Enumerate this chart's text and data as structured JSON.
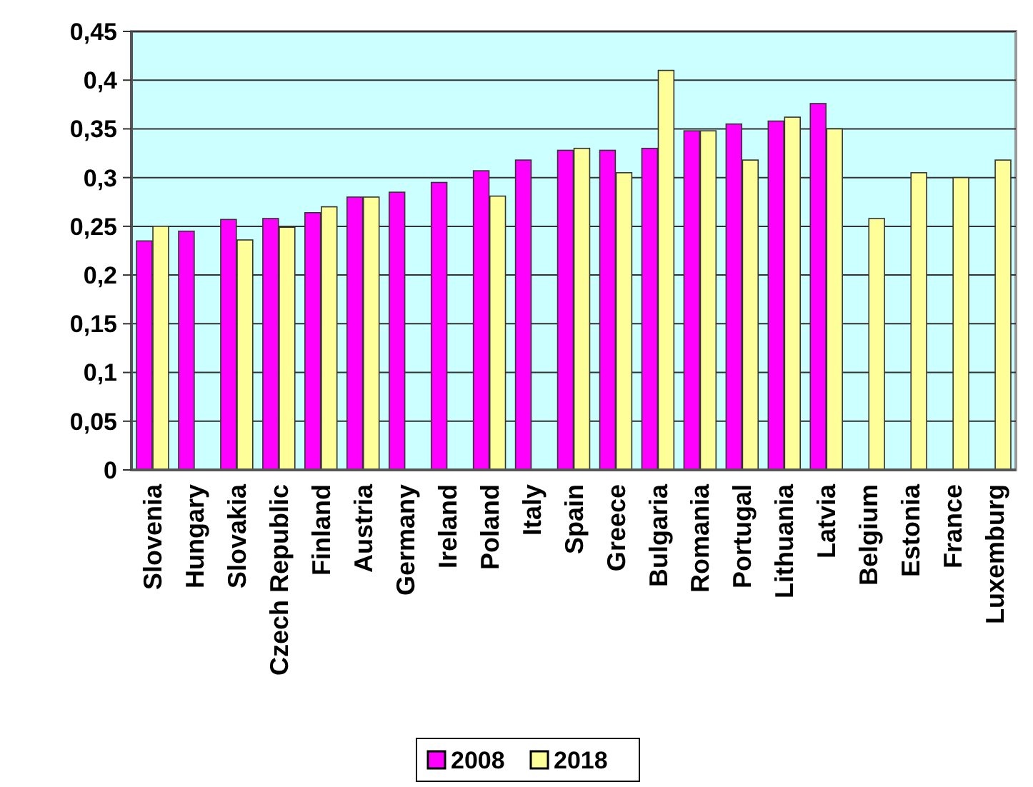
{
  "chart_data": {
    "type": "bar",
    "categories": [
      "Slovenia",
      "Hungary",
      "Slovakia",
      "Czech Republic",
      "Finland",
      "Austria",
      "Germany",
      "Ireland",
      "Poland",
      "Italy",
      "Spain",
      "Greece",
      "Bulgaria",
      "Romania",
      "Portugal",
      "Lithuania",
      "Latvia",
      "Belgium",
      "Estonia",
      "France",
      "Luxemburg"
    ],
    "series": [
      {
        "name": "2008",
        "color": "#ff00ff",
        "values": [
          0.235,
          0.245,
          0.257,
          0.258,
          0.264,
          0.28,
          0.285,
          0.295,
          0.307,
          0.318,
          0.328,
          0.328,
          0.33,
          0.348,
          0.355,
          0.358,
          0.376,
          null,
          null,
          null,
          null
        ]
      },
      {
        "name": "2018",
        "color": "#ffff99",
        "values": [
          0.25,
          null,
          0.236,
          0.249,
          0.27,
          0.28,
          null,
          null,
          0.281,
          null,
          0.33,
          0.305,
          0.41,
          0.348,
          0.318,
          0.362,
          0.35,
          0.258,
          0.305,
          0.3,
          0.318
        ]
      }
    ],
    "ylim": [
      0,
      0.45
    ],
    "yticks": [
      0,
      {
        "value": 0.05,
        "label": "0,05"
      },
      {
        "value": 0.1,
        "label": "0,1"
      },
      {
        "value": 0.15,
        "label": "0,15"
      },
      {
        "value": 0.2,
        "label": "0,2"
      },
      {
        "value": 0.25,
        "label": "0,25"
      },
      {
        "value": 0.3,
        "label": "0,3"
      },
      {
        "value": 0.35,
        "label": "0,35"
      },
      {
        "value": 0.4,
        "label": "0,4"
      },
      {
        "value": 0.45,
        "label": "0,45"
      }
    ],
    "grid": "y",
    "legend": "bottom"
  }
}
